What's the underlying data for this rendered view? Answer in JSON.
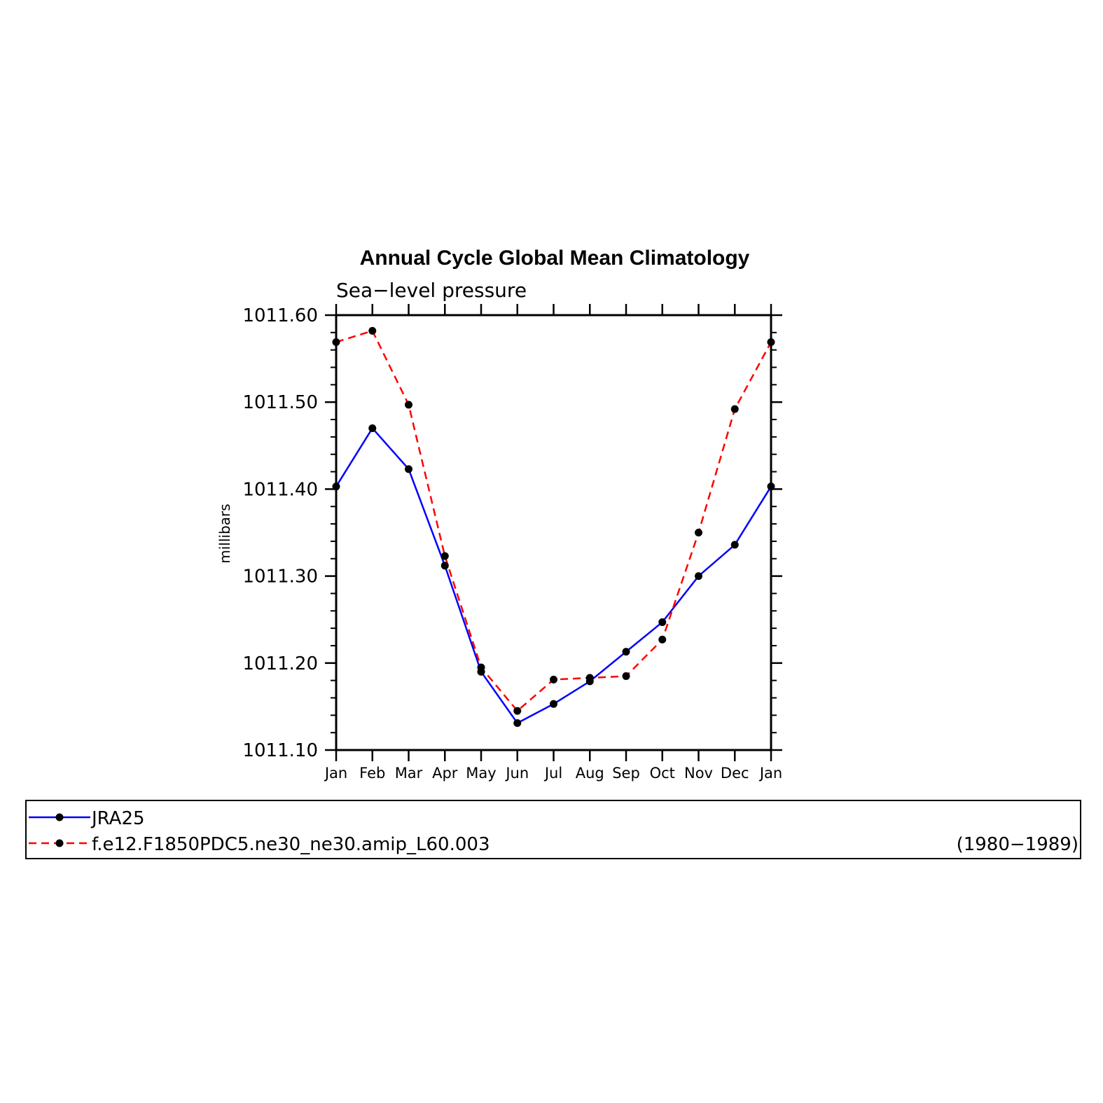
{
  "chart_data": {
    "type": "line",
    "title": "Annual Cycle Global Mean Climatology",
    "subtitle": "Sea−level pressure",
    "ylabel": "millibars",
    "xlabel": "",
    "categories": [
      "Jan",
      "Feb",
      "Mar",
      "Apr",
      "May",
      "Jun",
      "Jul",
      "Aug",
      "Sep",
      "Oct",
      "Nov",
      "Dec",
      "Jan"
    ],
    "ylim": [
      1011.1,
      1011.6
    ],
    "yticks": [
      "1011.10",
      "1011.20",
      "1011.30",
      "1011.40",
      "1011.50",
      "1011.60"
    ],
    "ytick_values": [
      1011.1,
      1011.2,
      1011.3,
      1011.4,
      1011.5,
      1011.6
    ],
    "yminor_step": 0.02,
    "grid": false,
    "legend_position": "bottom",
    "series": [
      {
        "name": "JRA25",
        "color": "#0000ff",
        "line_style": "solid",
        "marker": "filled-circle",
        "values": [
          1011.403,
          1011.47,
          1011.423,
          1011.312,
          1011.19,
          1011.131,
          1011.153,
          1011.179,
          1011.213,
          1011.247,
          1011.3,
          1011.336,
          1011.403
        ]
      },
      {
        "name": "f.e12.F1850PDC5.ne30_ne30.amip_L60.003",
        "color": "#ff0000",
        "line_style": "dashed",
        "marker": "filled-circle",
        "values": [
          1011.569,
          1011.582,
          1011.497,
          1011.323,
          1011.195,
          1011.145,
          1011.181,
          1011.183,
          1011.185,
          1011.227,
          1011.35,
          1011.492,
          1011.569
        ]
      }
    ],
    "period_label": "(1980−1989)",
    "marker_color": "#000000"
  }
}
